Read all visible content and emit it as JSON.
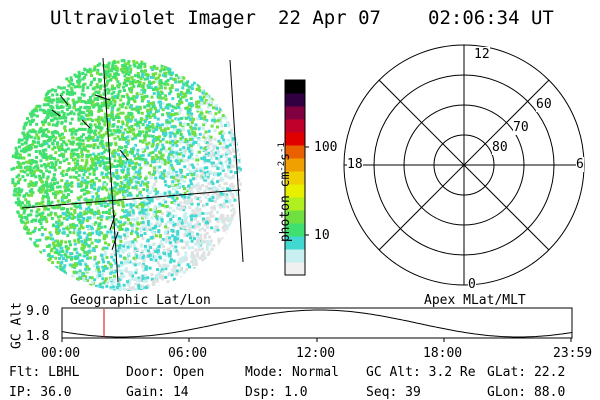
{
  "header": {
    "instrument": "Ultraviolet Imager",
    "date": "22 Apr 07",
    "time": "02:06:34 UT"
  },
  "colorbar": {
    "label": "photon cm",
    "label_exp1": "-2",
    "label_mid": "s",
    "label_exp2": "-1",
    "ticks": [
      "100",
      "10"
    ],
    "colors": [
      "#f0f0f0",
      "#c8f0f0",
      "#40d8d0",
      "#40e070",
      "#70e040",
      "#b0f020",
      "#e8f000",
      "#f0d000",
      "#f0a000",
      "#e86000",
      "#e00000",
      "#c0002a",
      "#800040",
      "#300040",
      "#000000"
    ]
  },
  "polar_plot": {
    "mlt_labels": {
      "top": "12",
      "left": "18",
      "right": "6",
      "bottom": "0"
    },
    "mlat_labels": [
      "60",
      "70",
      "80"
    ]
  },
  "plot_labels": {
    "left": "Geographic Lat/Lon",
    "right": "Apex MLat/MLT"
  },
  "altitude_panel": {
    "ylabel": "GC Alt",
    "ymax": "9.0",
    "ymin": "1.8",
    "x_ticks": [
      "00:00",
      "06:00",
      "12:00",
      "18:00",
      "23:59"
    ]
  },
  "info_row1": {
    "flt": "Flt: LBHL",
    "door": "Door: Open",
    "mode": "Mode: Normal",
    "gcalt": "GC Alt: 3.2 Re",
    "glat": "GLat: 22.2"
  },
  "info_row2": {
    "ip": "IP: 36.0",
    "gain": "Gain: 14",
    "dsp": "Dsp:    1.0",
    "seq": "Seq: 39",
    "glon": "GLon: 88.0"
  }
}
